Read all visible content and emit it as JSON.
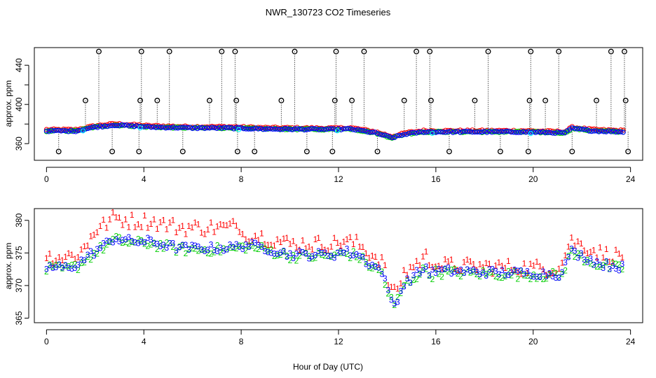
{
  "chart_data": {
    "title": "NWR_130723  CO2 Timeseries",
    "xlabel": "Hour of Day (UTC)",
    "colors": {
      "series1": "#ff0000",
      "series2": "#00cd00",
      "series3": "#0000ff",
      "cyan": "#00ffff",
      "flag": "#000000"
    },
    "panels": [
      {
        "type": "scatter",
        "ylabel": "approx. ppm",
        "xlim": [
          -0.5,
          24.5
        ],
        "ylim": [
          343,
          458
        ],
        "xticks": [
          0,
          4,
          8,
          12,
          16,
          20,
          24
        ],
        "yticks": [
          360,
          400,
          440
        ],
        "y_minor": [
          380,
          420
        ],
        "series_marker": "o",
        "series_names": [
          "1",
          "2",
          "3"
        ],
        "baseline_knots": [
          [
            0,
            373
          ],
          [
            1.2,
            373
          ],
          [
            2,
            377
          ],
          [
            2.8,
            379
          ],
          [
            3.6,
            378
          ],
          [
            4.2,
            377
          ],
          [
            6,
            376
          ],
          [
            7.5,
            376
          ],
          [
            9,
            375
          ],
          [
            11.8,
            374.5
          ],
          [
            12.5,
            375
          ],
          [
            13.5,
            371
          ],
          [
            14.2,
            366
          ],
          [
            14.8,
            370
          ],
          [
            15.5,
            372
          ],
          [
            16,
            372
          ],
          [
            19.5,
            372
          ],
          [
            21.3,
            371
          ],
          [
            21.6,
            375.5
          ],
          [
            22.5,
            373
          ],
          [
            23.8,
            372
          ]
        ],
        "flags_high": [
          2.15,
          3.9,
          5.05,
          7.2,
          7.75,
          10.2,
          11.9,
          13.05,
          15.2,
          15.75,
          18.15,
          19.9,
          21.05,
          23.2,
          23.75
        ],
        "flags_mid": [
          1.6,
          3.85,
          4.55,
          6.7,
          7.8,
          9.65,
          11.85,
          12.55,
          14.7,
          15.8,
          17.6,
          19.85,
          20.5,
          22.6,
          23.8
        ],
        "flags_low": [
          0.5,
          2.7,
          3.8,
          5.6,
          7.85,
          8.55,
          10.7,
          11.75,
          13.6,
          16.55,
          18.65,
          19.8,
          21.6,
          23.9
        ],
        "flags_low_value": 352,
        "flags_mid_value": 404,
        "flags_high_value": 454
      },
      {
        "type": "scatter",
        "ylabel": "approx. ppm",
        "xlim": [
          -0.5,
          24.5
        ],
        "ylim": [
          364.3,
          381.8
        ],
        "xticks": [
          0,
          4,
          8,
          12,
          16,
          20,
          24
        ],
        "yticks": [
          365,
          370,
          375,
          380
        ],
        "series_marker": "digit",
        "series_names": [
          "1",
          "2",
          "3"
        ],
        "baseline_knots": [
          [
            0,
            372.5
          ],
          [
            0.8,
            372.5
          ],
          [
            1.3,
            373
          ],
          [
            1.6,
            374
          ],
          [
            2.2,
            375.5
          ],
          [
            2.8,
            377
          ],
          [
            3.5,
            376.5
          ],
          [
            4.2,
            376.5
          ],
          [
            5.5,
            375.5
          ],
          [
            7.5,
            375.5
          ],
          [
            8.2,
            376
          ],
          [
            9,
            375.5
          ],
          [
            10,
            374.5
          ],
          [
            11.8,
            374.5
          ],
          [
            12.2,
            375
          ],
          [
            12.8,
            374.5
          ],
          [
            13.3,
            373
          ],
          [
            13.8,
            372
          ],
          [
            14,
            369
          ],
          [
            14.3,
            366.8
          ],
          [
            14.7,
            370
          ],
          [
            15.2,
            371.5
          ],
          [
            15.6,
            372.5
          ],
          [
            15.8,
            371.5
          ],
          [
            16,
            372
          ],
          [
            21.2,
            371.5
          ],
          [
            21.5,
            375
          ],
          [
            22.2,
            374
          ],
          [
            22.8,
            373
          ],
          [
            23.8,
            372.5
          ]
        ]
      }
    ]
  }
}
